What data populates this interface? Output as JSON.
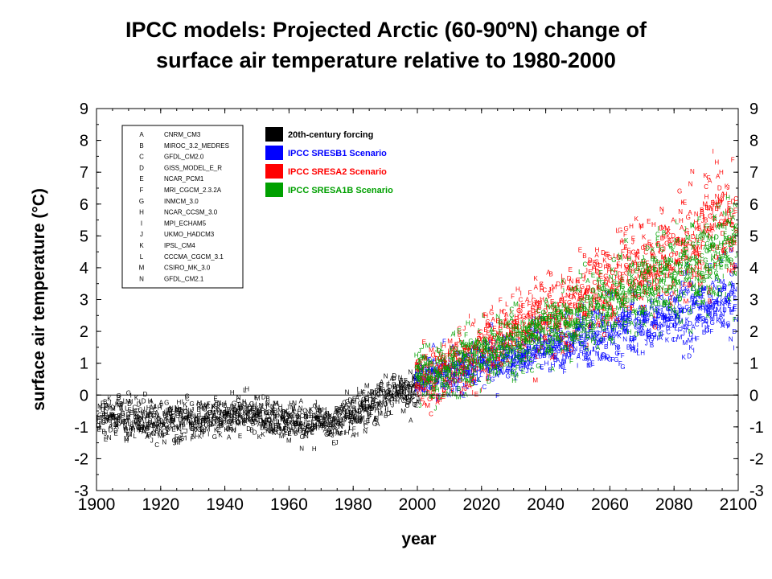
{
  "title_line1": "IPCC models:  Projected Arctic (60-90ºN) change of",
  "title_line2": "surface air temperature relative to 1980-2000",
  "chart_data": {
    "type": "scatter",
    "xlabel": "year",
    "ylabel": "surface air temperature (°C)",
    "xlim": [
      1900,
      2100
    ],
    "ylim": [
      -3,
      9
    ],
    "x_ticks": [
      "1900",
      "1920",
      "1940",
      "1960",
      "1980",
      "2000",
      "2020",
      "2040",
      "2060",
      "2080",
      "2100"
    ],
    "y_ticks": [
      "-3",
      "-2",
      "-1",
      "0",
      "1",
      "2",
      "3",
      "4",
      "5",
      "6",
      "7",
      "8",
      "9"
    ],
    "zero_line": 0,
    "models_legend": [
      {
        "letter": "A",
        "name": "CNRM_CM3"
      },
      {
        "letter": "B",
        "name": "MIROC_3.2_MEDRES"
      },
      {
        "letter": "C",
        "name": "GFDL_CM2.0"
      },
      {
        "letter": "D",
        "name": "GISS_MODEL_E_R"
      },
      {
        "letter": "E",
        "name": "NCAR_PCM1"
      },
      {
        "letter": "F",
        "name": "MRI_CGCM_2.3.2A"
      },
      {
        "letter": "G",
        "name": "INMCM_3.0"
      },
      {
        "letter": "H",
        "name": "NCAR_CCSM_3.0"
      },
      {
        "letter": "I",
        "name": "MPI_ECHAM5"
      },
      {
        "letter": "J",
        "name": "UKMO_HADCM3"
      },
      {
        "letter": "K",
        "name": "IPSL_CM4"
      },
      {
        "letter": "L",
        "name": "CCCMA_CGCM_3.1"
      },
      {
        "letter": "M",
        "name": "CSIRO_MK_3.0"
      },
      {
        "letter": "N",
        "name": "GFDL_CM2.1"
      }
    ],
    "scenario_legend": [
      {
        "label": "20th-century forcing",
        "color": "#000000"
      },
      {
        "label": "IPCC SRESB1 Scenario",
        "color": "#0000ff"
      },
      {
        "label": "IPCC SRESA2 Scenario",
        "color": "#ff0000"
      },
      {
        "label": "IPCC SRESA1B Scenario",
        "color": "#00a000"
      }
    ],
    "series": [
      {
        "name": "20th-century forcing",
        "color": "#000000",
        "years": [
          1900,
          2000
        ],
        "mean_start": -0.75,
        "mean_end": 0.3,
        "spread": 0.55,
        "markers": "ABCDEFGHIJKLMN"
      },
      {
        "name": "IPCC SRESB1 Scenario",
        "color": "#0000ff",
        "years": [
          2000,
          2100
        ],
        "mean_start": 0.5,
        "mean_end": 3.0,
        "spread": 0.85,
        "markers": "ABCDEFGHIJKLMN"
      },
      {
        "name": "IPCC SRESA2 Scenario",
        "color": "#ff0000",
        "years": [
          2000,
          2100
        ],
        "mean_start": 0.5,
        "mean_end": 5.6,
        "spread": 1.3,
        "markers": "ABCDEFGHIJKLMN"
      },
      {
        "name": "IPCC SRESA1B Scenario",
        "color": "#00a000",
        "years": [
          2000,
          2100
        ],
        "mean_start": 0.5,
        "mean_end": 4.6,
        "spread": 1.1,
        "markers": "ABCDEFGHIJKLMN"
      }
    ],
    "grid": false,
    "legend_placement": "top-left"
  }
}
